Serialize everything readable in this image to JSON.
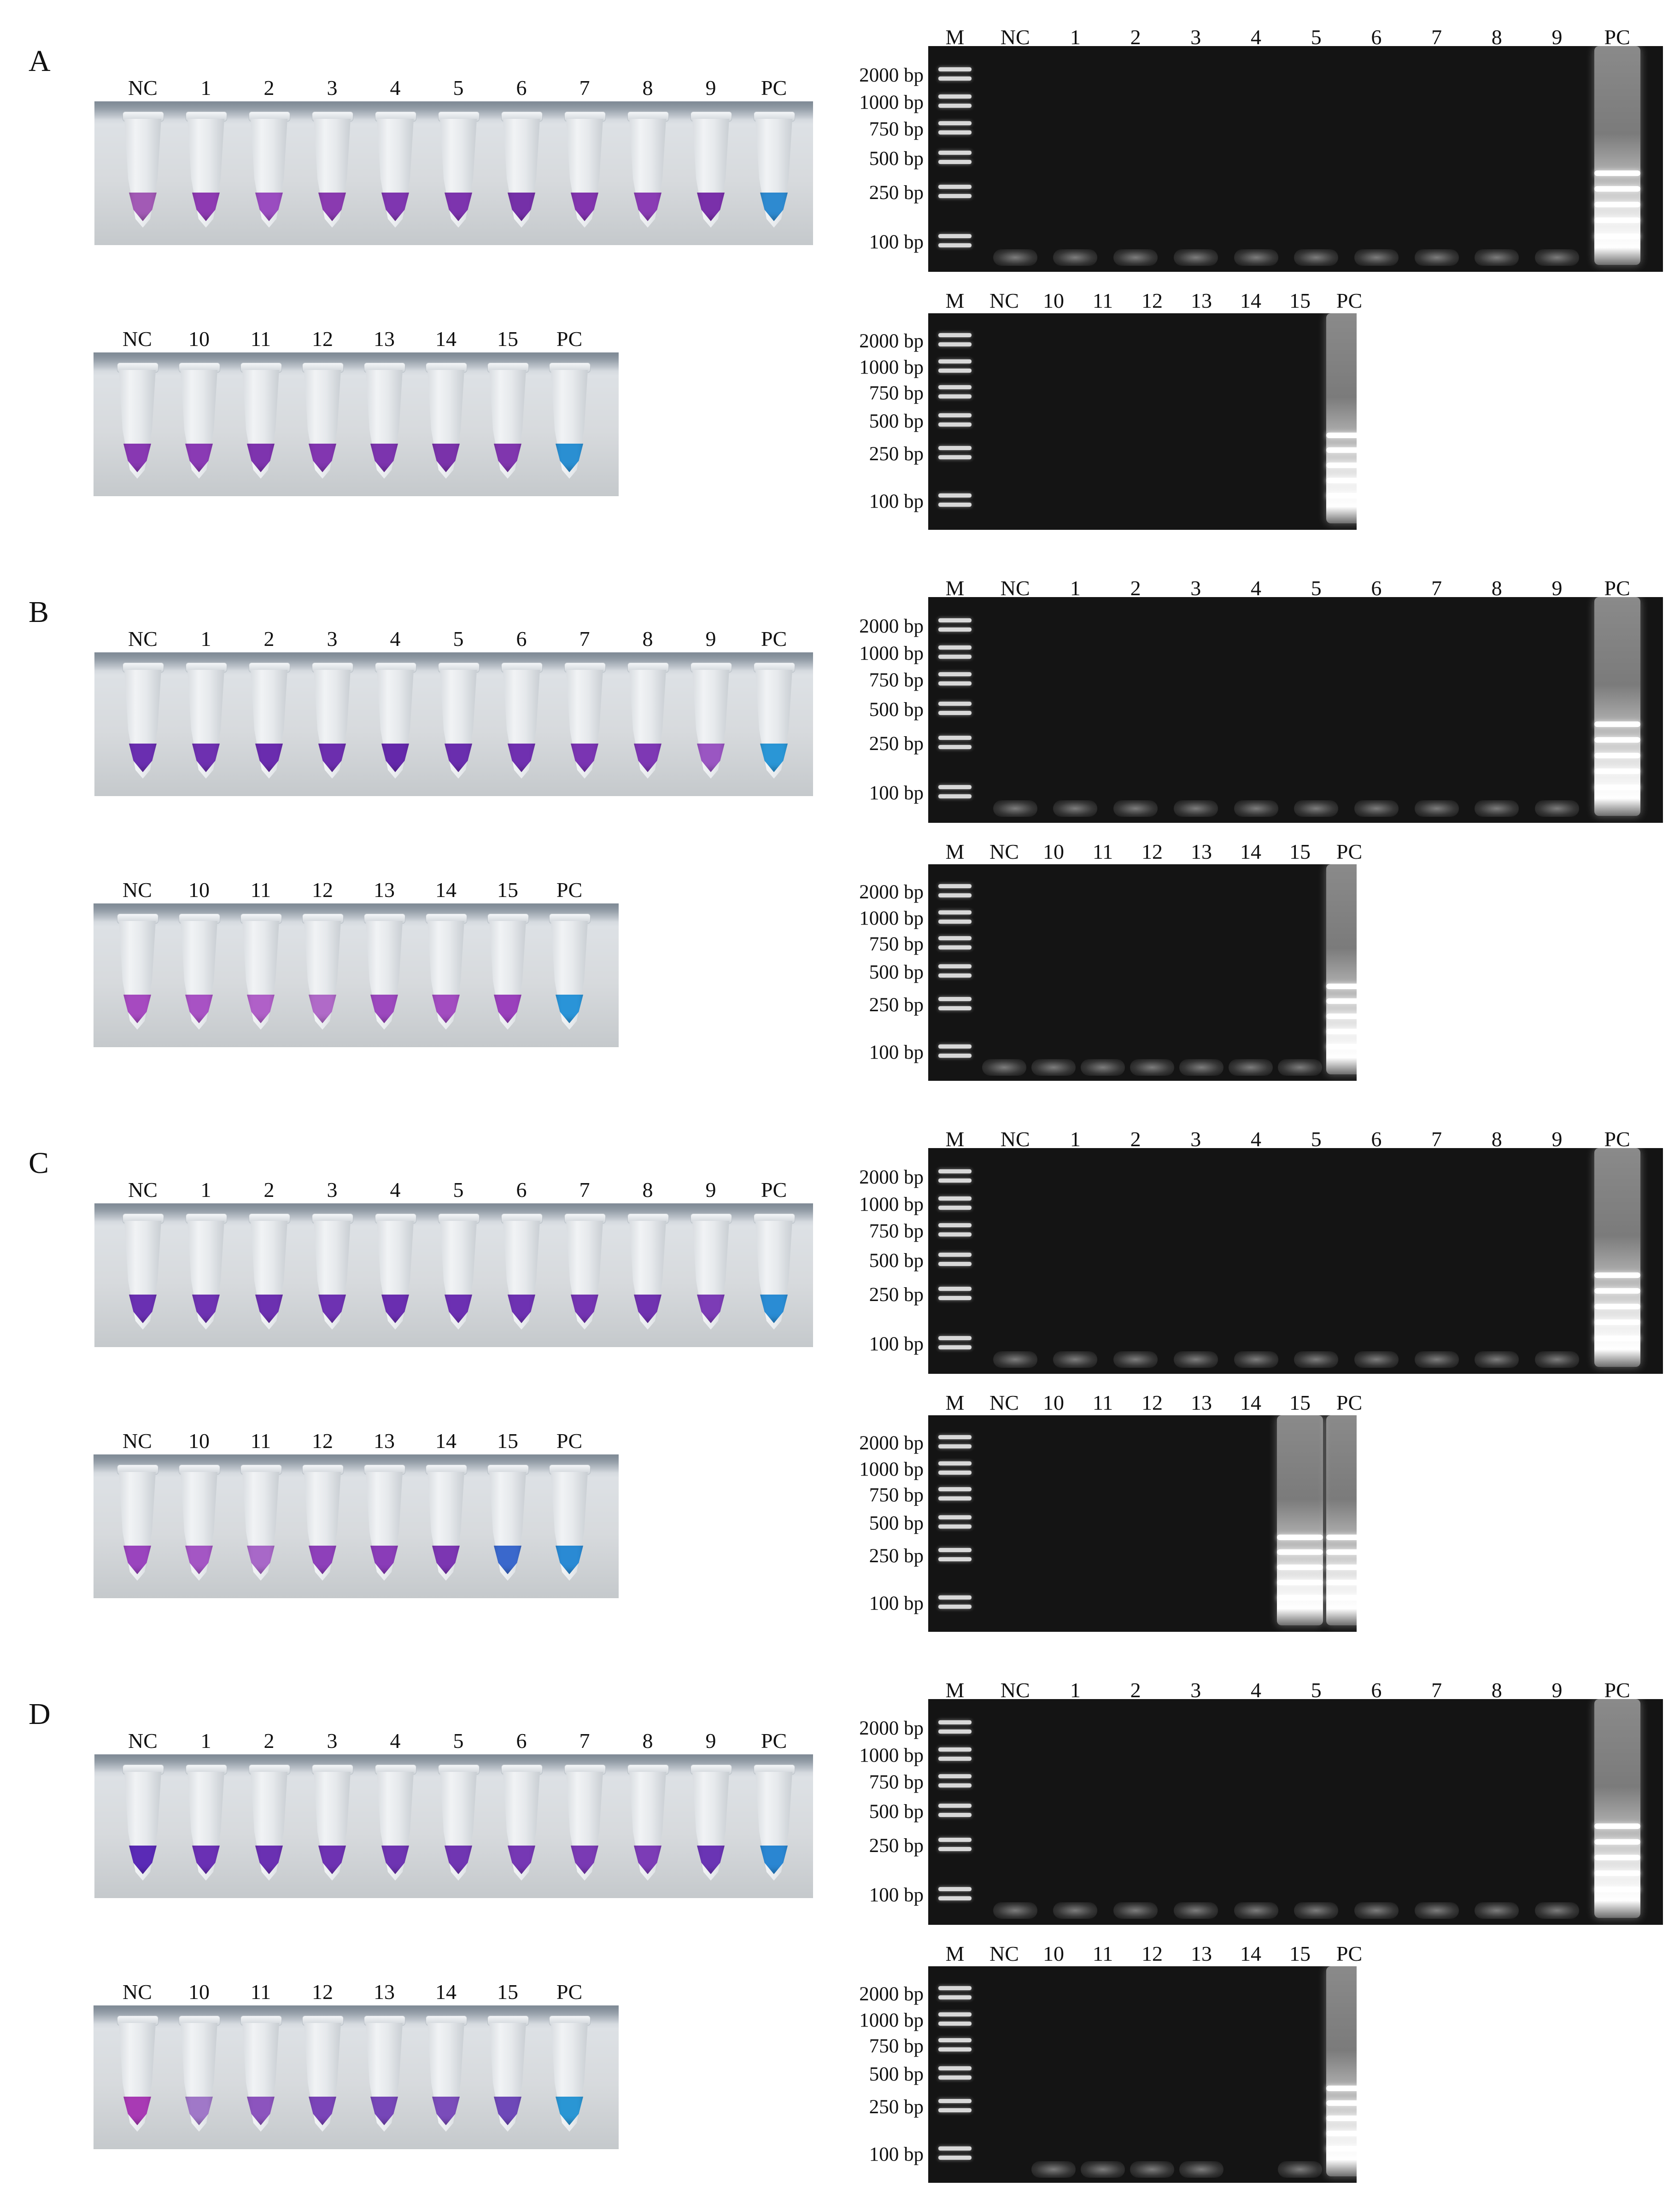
{
  "figure": {
    "panels": [
      {
        "letter": "A",
        "rows": [
          {
            "tubes": [
              {
                "label": "NC",
                "color": "#a25ab5"
              },
              {
                "label": "1",
                "color": "#8e3ab2"
              },
              {
                "label": "2",
                "color": "#9a4cc0"
              },
              {
                "label": "3",
                "color": "#8a3ab0"
              },
              {
                "label": "4",
                "color": "#7f36b0"
              },
              {
                "label": "5",
                "color": "#7d34ae"
              },
              {
                "label": "6",
                "color": "#7530a8"
              },
              {
                "label": "7",
                "color": "#8234ae"
              },
              {
                "label": "8",
                "color": "#8a3cb4"
              },
              {
                "label": "9",
                "color": "#7a30aa"
              },
              {
                "label": "PC",
                "color": "#2e8ad0"
              }
            ],
            "gel": {
              "lanes": [
                "M",
                "NC",
                "1",
                "2",
                "3",
                "4",
                "5",
                "6",
                "7",
                "8",
                "9",
                "PC"
              ],
              "bp_labels": [
                "2000 bp",
                "1000 bp",
                "750 bp",
                "500 bp",
                "250 bp",
                "100 bp"
              ],
              "faint_lanes": [
                "NC",
                "1",
                "2",
                "3",
                "4",
                "5",
                "6",
                "7",
                "8",
                "9"
              ],
              "positive_lanes": [
                "PC"
              ]
            }
          },
          {
            "tubes": [
              {
                "label": "NC",
                "color": "#8838b2"
              },
              {
                "label": "10",
                "color": "#8a3ab4"
              },
              {
                "label": "11",
                "color": "#7e34ae"
              },
              {
                "label": "12",
                "color": "#8236b0"
              },
              {
                "label": "13",
                "color": "#7c34ae"
              },
              {
                "label": "14",
                "color": "#7a32aa"
              },
              {
                "label": "15",
                "color": "#8036ae"
              },
              {
                "label": "PC",
                "color": "#2a8fd2"
              }
            ],
            "gel": {
              "lanes": [
                "M",
                "NC",
                "10",
                "11",
                "12",
                "13",
                "14",
                "15",
                "PC"
              ],
              "bp_labels": [
                "2000 bp",
                "1000 bp",
                "750 bp",
                "500 bp",
                "250 bp",
                "100 bp"
              ],
              "faint_lanes": [],
              "positive_lanes": [
                "PC"
              ]
            }
          }
        ]
      },
      {
        "letter": "B",
        "rows": [
          {
            "tubes": [
              {
                "label": "NC",
                "color": "#6a2eb0"
              },
              {
                "label": "1",
                "color": "#6e30b0"
              },
              {
                "label": "2",
                "color": "#6a2cae"
              },
              {
                "label": "3",
                "color": "#6c2eae"
              },
              {
                "label": "4",
                "color": "#6428aa"
              },
              {
                "label": "5",
                "color": "#6a2eae"
              },
              {
                "label": "6",
                "color": "#7030b0"
              },
              {
                "label": "7",
                "color": "#7a34b2"
              },
              {
                "label": "8",
                "color": "#7e38b4"
              },
              {
                "label": "9",
                "color": "#9a56c2"
              },
              {
                "label": "PC",
                "color": "#2a96d6"
              }
            ],
            "gel": {
              "lanes": [
                "M",
                "NC",
                "1",
                "2",
                "3",
                "4",
                "5",
                "6",
                "7",
                "8",
                "9",
                "PC"
              ],
              "bp_labels": [
                "2000 bp",
                "1000 bp",
                "750 bp",
                "500 bp",
                "250 bp",
                "100 bp"
              ],
              "faint_lanes": [
                "NC",
                "1",
                "2",
                "3",
                "4",
                "5",
                "6",
                "7",
                "8",
                "9"
              ],
              "positive_lanes": [
                "PC"
              ]
            }
          },
          {
            "tubes": [
              {
                "label": "NC",
                "color": "#a64ac0"
              },
              {
                "label": "10",
                "color": "#a852c4"
              },
              {
                "label": "11",
                "color": "#b060c8"
              },
              {
                "label": "12",
                "color": "#b06ac8"
              },
              {
                "label": "13",
                "color": "#9c48be"
              },
              {
                "label": "14",
                "color": "#a24cc0"
              },
              {
                "label": "15",
                "color": "#9a40bc"
              },
              {
                "label": "PC",
                "color": "#2a94d8"
              }
            ],
            "gel": {
              "lanes": [
                "M",
                "NC",
                "10",
                "11",
                "12",
                "13",
                "14",
                "15",
                "PC"
              ],
              "bp_labels": [
                "2000 bp",
                "1000 bp",
                "750 bp",
                "500 bp",
                "250 bp",
                "100 bp"
              ],
              "faint_lanes": [
                "NC",
                "10",
                "11",
                "12",
                "13",
                "14",
                "15"
              ],
              "positive_lanes": [
                "PC"
              ]
            }
          }
        ]
      },
      {
        "letter": "C",
        "rows": [
          {
            "tubes": [
              {
                "label": "NC",
                "color": "#6a30b2"
              },
              {
                "label": "1",
                "color": "#6e32b2"
              },
              {
                "label": "2",
                "color": "#6c30b0"
              },
              {
                "label": "3",
                "color": "#6e32b2"
              },
              {
                "label": "4",
                "color": "#6a2eb0"
              },
              {
                "label": "5",
                "color": "#6c30b2"
              },
              {
                "label": "6",
                "color": "#6e32b2"
              },
              {
                "label": "7",
                "color": "#7434b2"
              },
              {
                "label": "8",
                "color": "#7032b0"
              },
              {
                "label": "9",
                "color": "#7c3cb6"
              },
              {
                "label": "PC",
                "color": "#2a8cd4"
              }
            ],
            "gel": {
              "lanes": [
                "M",
                "NC",
                "1",
                "2",
                "3",
                "4",
                "5",
                "6",
                "7",
                "8",
                "9",
                "PC"
              ],
              "bp_labels": [
                "2000 bp",
                "1000 bp",
                "750 bp",
                "500 bp",
                "250 bp",
                "100 bp"
              ],
              "faint_lanes": [
                "NC",
                "1",
                "2",
                "3",
                "4",
                "5",
                "6",
                "7",
                "8",
                "9"
              ],
              "positive_lanes": [
                "PC"
              ]
            }
          },
          {
            "tubes": [
              {
                "label": "NC",
                "color": "#9a44be"
              },
              {
                "label": "10",
                "color": "#a456c4"
              },
              {
                "label": "11",
                "color": "#a868c8"
              },
              {
                "label": "12",
                "color": "#8e40ba"
              },
              {
                "label": "13",
                "color": "#8a3cb8"
              },
              {
                "label": "14",
                "color": "#7c36b2"
              },
              {
                "label": "15",
                "color": "#3a68cc"
              },
              {
                "label": "PC",
                "color": "#2a8ad4"
              }
            ],
            "gel": {
              "lanes": [
                "M",
                "NC",
                "10",
                "11",
                "12",
                "13",
                "14",
                "15",
                "PC"
              ],
              "bp_labels": [
                "2000 bp",
                "1000 bp",
                "750 bp",
                "500 bp",
                "250 bp",
                "100 bp"
              ],
              "faint_lanes": [],
              "positive_lanes": [
                "15",
                "PC"
              ]
            }
          }
        ]
      },
      {
        "letter": "D",
        "rows": [
          {
            "tubes": [
              {
                "label": "NC",
                "color": "#5a2ab6"
              },
              {
                "label": "1",
                "color": "#6a30b4"
              },
              {
                "label": "2",
                "color": "#6a30b2"
              },
              {
                "label": "3",
                "color": "#6e32b2"
              },
              {
                "label": "4",
                "color": "#6e34b2"
              },
              {
                "label": "5",
                "color": "#7036b2"
              },
              {
                "label": "6",
                "color": "#7638b4"
              },
              {
                "label": "7",
                "color": "#7a3ab4"
              },
              {
                "label": "8",
                "color": "#7c3cb6"
              },
              {
                "label": "9",
                "color": "#6a34b4"
              },
              {
                "label": "PC",
                "color": "#2a86d2"
              }
            ],
            "gel": {
              "lanes": [
                "M",
                "NC",
                "1",
                "2",
                "3",
                "4",
                "5",
                "6",
                "7",
                "8",
                "9",
                "PC"
              ],
              "bp_labels": [
                "2000 bp",
                "1000 bp",
                "750 bp",
                "500 bp",
                "250 bp",
                "100 bp"
              ],
              "faint_lanes": [
                "NC",
                "1",
                "2",
                "3",
                "4",
                "5",
                "6",
                "7",
                "8",
                "9"
              ],
              "positive_lanes": [
                "PC"
              ]
            }
          },
          {
            "tubes": [
              {
                "label": "NC",
                "color": "#a83ab4"
              },
              {
                "label": "10",
                "color": "#a078c8"
              },
              {
                "label": "11",
                "color": "#8c54be"
              },
              {
                "label": "12",
                "color": "#7a44b8"
              },
              {
                "label": "13",
                "color": "#7646b8"
              },
              {
                "label": "14",
                "color": "#7a4cba"
              },
              {
                "label": "15",
                "color": "#6e48b8"
              },
              {
                "label": "PC",
                "color": "#2a96d4"
              }
            ],
            "gel": {
              "lanes": [
                "M",
                "NC",
                "10",
                "11",
                "12",
                "13",
                "14",
                "15",
                "PC"
              ],
              "bp_labels": [
                "2000 bp",
                "1000 bp",
                "750 bp",
                "500 bp",
                "250 bp",
                "100 bp"
              ],
              "faint_lanes": [
                "10",
                "11",
                "12",
                "13",
                "15"
              ],
              "positive_lanes": [
                "PC"
              ]
            }
          }
        ]
      }
    ]
  }
}
